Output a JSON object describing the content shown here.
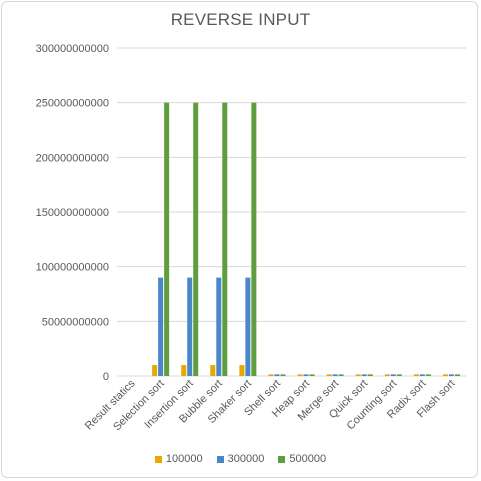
{
  "chart_data": {
    "type": "bar",
    "title": "REVERSE INPUT",
    "categories": [
      "Result statics",
      "Selection sort",
      "Insertion sort",
      "Bubble sort",
      "Shaker sort",
      "Shell sort",
      "Heap sort",
      "Merge sort",
      "Quick sort",
      "Counting sort",
      "Radix sort",
      "Flash sort"
    ],
    "series": [
      {
        "name": "100000",
        "color": "#e8a800",
        "values": [
          0,
          10000000000,
          10000000000,
          10000000000,
          10000000000,
          1500000000,
          1500000000,
          1500000000,
          1500000000,
          1500000000,
          1500000000,
          1500000000
        ]
      },
      {
        "name": "300000",
        "color": "#4a86c8",
        "values": [
          0,
          90000000000,
          90000000000,
          90000000000,
          90000000000,
          1500000000,
          1500000000,
          1500000000,
          1500000000,
          1500000000,
          1500000000,
          1500000000
        ]
      },
      {
        "name": "500000",
        "color": "#5e9e3e",
        "values": [
          0,
          250000000000,
          250000000000,
          250000000000,
          250000000000,
          1500000000,
          1500000000,
          1500000000,
          1500000000,
          1500000000,
          1500000000,
          1500000000
        ]
      }
    ],
    "ylim": [
      0,
      300000000000
    ],
    "yticks": [
      "0",
      "50000000000",
      "100000000000",
      "150000000000",
      "200000000000",
      "250000000000",
      "300000000000"
    ],
    "grid": true,
    "legend_position": "bottom"
  }
}
